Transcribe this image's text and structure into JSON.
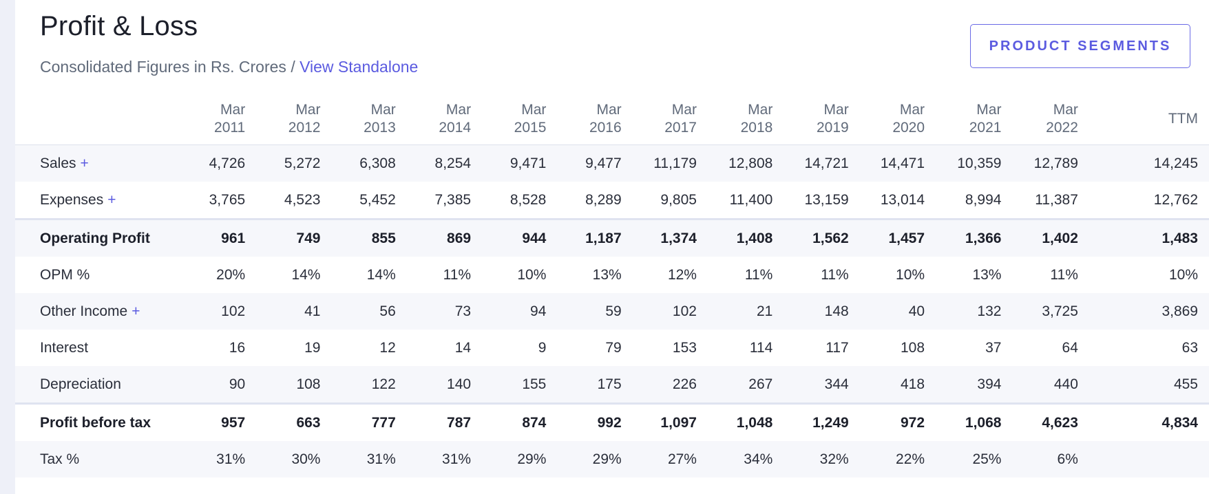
{
  "header": {
    "title": "Profit & Loss",
    "subtitle_prefix": "Consolidated Figures in Rs. Crores",
    "subtitle_sep": " / ",
    "view_link": "View Standalone",
    "product_segments_button": "PRODUCT SEGMENTS"
  },
  "columns": [
    {
      "month": "Mar",
      "year": "2011"
    },
    {
      "month": "Mar",
      "year": "2012"
    },
    {
      "month": "Mar",
      "year": "2013"
    },
    {
      "month": "Mar",
      "year": "2014"
    },
    {
      "month": "Mar",
      "year": "2015"
    },
    {
      "month": "Mar",
      "year": "2016"
    },
    {
      "month": "Mar",
      "year": "2017"
    },
    {
      "month": "Mar",
      "year": "2018"
    },
    {
      "month": "Mar",
      "year": "2019"
    },
    {
      "month": "Mar",
      "year": "2020"
    },
    {
      "month": "Mar",
      "year": "2021"
    },
    {
      "month": "Mar",
      "year": "2022"
    }
  ],
  "ttm_label": "TTM",
  "rows": [
    {
      "label": "Sales",
      "expandable": true,
      "strong": false,
      "values": [
        "4,726",
        "5,272",
        "6,308",
        "8,254",
        "9,471",
        "9,477",
        "11,179",
        "12,808",
        "14,721",
        "14,471",
        "10,359",
        "12,789",
        "14,245"
      ]
    },
    {
      "label": "Expenses",
      "expandable": true,
      "strong": false,
      "values": [
        "3,765",
        "4,523",
        "5,452",
        "7,385",
        "8,528",
        "8,289",
        "9,805",
        "11,400",
        "13,159",
        "13,014",
        "8,994",
        "11,387",
        "12,762"
      ]
    },
    {
      "label": "Operating Profit",
      "expandable": false,
      "strong": true,
      "values": [
        "961",
        "749",
        "855",
        "869",
        "944",
        "1,187",
        "1,374",
        "1,408",
        "1,562",
        "1,457",
        "1,366",
        "1,402",
        "1,483"
      ]
    },
    {
      "label": "OPM %",
      "expandable": false,
      "strong": false,
      "values": [
        "20%",
        "14%",
        "14%",
        "11%",
        "10%",
        "13%",
        "12%",
        "11%",
        "11%",
        "10%",
        "13%",
        "11%",
        "10%"
      ]
    },
    {
      "label": "Other Income",
      "expandable": true,
      "strong": false,
      "values": [
        "102",
        "41",
        "56",
        "73",
        "94",
        "59",
        "102",
        "21",
        "148",
        "40",
        "132",
        "3,725",
        "3,869"
      ]
    },
    {
      "label": "Interest",
      "expandable": false,
      "strong": false,
      "values": [
        "16",
        "19",
        "12",
        "14",
        "9",
        "79",
        "153",
        "114",
        "117",
        "108",
        "37",
        "64",
        "63"
      ]
    },
    {
      "label": "Depreciation",
      "expandable": false,
      "strong": false,
      "values": [
        "90",
        "108",
        "122",
        "140",
        "155",
        "175",
        "226",
        "267",
        "344",
        "418",
        "394",
        "440",
        "455"
      ]
    },
    {
      "label": "Profit before tax",
      "expandable": false,
      "strong": true,
      "values": [
        "957",
        "663",
        "777",
        "787",
        "874",
        "992",
        "1,097",
        "1,048",
        "1,249",
        "972",
        "1,068",
        "4,623",
        "4,834"
      ]
    },
    {
      "label": "Tax %",
      "expandable": false,
      "strong": false,
      "values": [
        "31%",
        "30%",
        "31%",
        "31%",
        "29%",
        "29%",
        "27%",
        "34%",
        "32%",
        "22%",
        "25%",
        "6%",
        ""
      ]
    }
  ],
  "plus_symbol": "+",
  "colors": {
    "accent": "#5b5be0",
    "stripe": "#f6f7fb",
    "page_bg": "#eef0f8"
  }
}
